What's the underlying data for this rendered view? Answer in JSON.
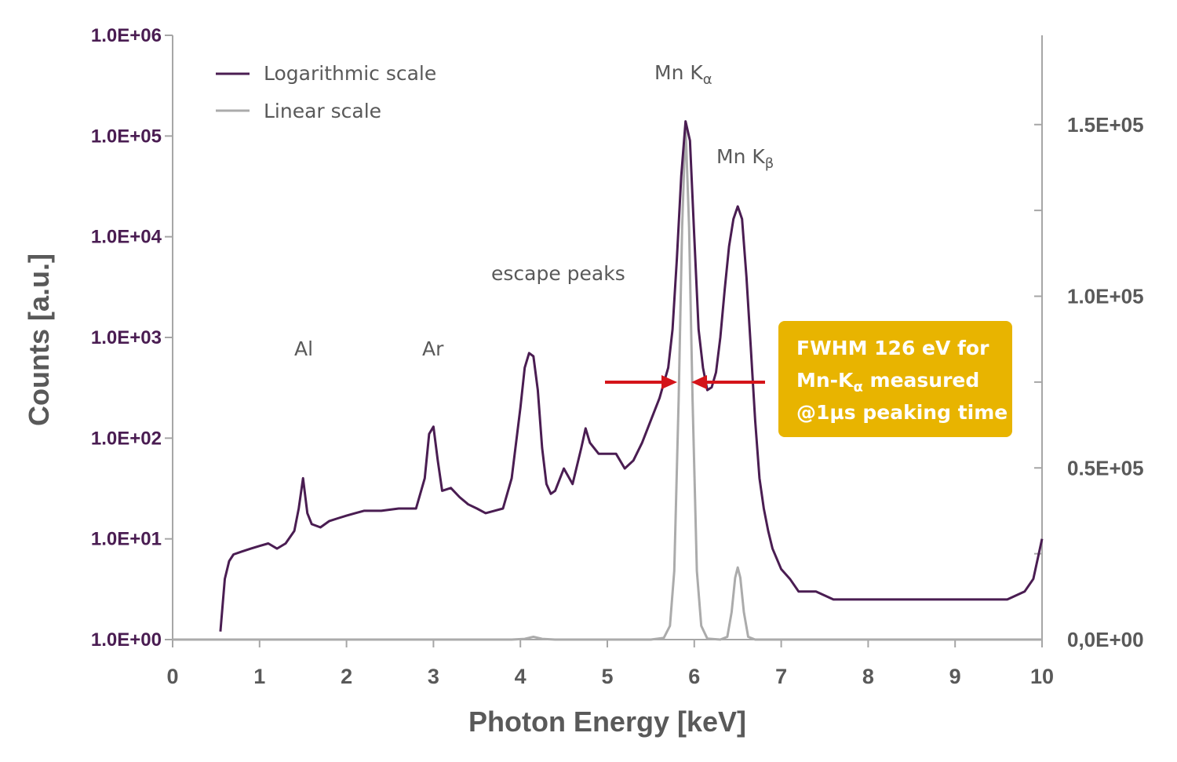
{
  "chart_data": {
    "type": "line",
    "xlabel": "Photon Energy [keV]",
    "ylabel": "Counts [a.u.]",
    "xlim": [
      0,
      10
    ],
    "x_ticks": [
      "0",
      "1",
      "2",
      "3",
      "4",
      "5",
      "6",
      "7",
      "8",
      "9",
      "10"
    ],
    "left_axis": {
      "scale": "log",
      "ylim": [
        1,
        1000000
      ],
      "ticks": [
        1,
        10,
        100,
        1000,
        10000,
        100000,
        1000000
      ],
      "tick_labels": [
        "1.0E+00",
        "1.0E+01",
        "1.0E+02",
        "1.0E+03",
        "1.0E+04",
        "1.0E+05",
        "1.0E+06"
      ],
      "color": "#4a1d52"
    },
    "right_axis": {
      "scale": "linear",
      "ylim": [
        0,
        176000
      ],
      "ticks": [
        0,
        50000,
        100000,
        150000
      ],
      "tick_labels": [
        "0,0E+00",
        "0.5E+05",
        "1.0E+05",
        "1.5E+05"
      ],
      "minor_ticks": [
        25000,
        75000,
        125000
      ],
      "color": "#595959"
    },
    "legend": {
      "position": "top-left",
      "entries": [
        {
          "label": "Logarithmic scale",
          "color": "#4a1d52"
        },
        {
          "label": "Linear scale",
          "color": "#ababab"
        }
      ]
    },
    "series": [
      {
        "name": "Logarithmic scale",
        "axis": "left",
        "color": "#4a1d52",
        "x": [
          0.55,
          0.6,
          0.65,
          0.7,
          0.8,
          0.9,
          1.0,
          1.1,
          1.2,
          1.3,
          1.4,
          1.45,
          1.5,
          1.55,
          1.6,
          1.7,
          1.8,
          1.9,
          2.0,
          2.1,
          2.2,
          2.4,
          2.6,
          2.8,
          2.9,
          2.95,
          3.0,
          3.05,
          3.1,
          3.2,
          3.3,
          3.4,
          3.5,
          3.6,
          3.8,
          3.9,
          4.0,
          4.05,
          4.1,
          4.15,
          4.2,
          4.25,
          4.3,
          4.35,
          4.4,
          4.5,
          4.6,
          4.7,
          4.75,
          4.8,
          4.9,
          5.0,
          5.1,
          5.2,
          5.3,
          5.4,
          5.5,
          5.6,
          5.7,
          5.75,
          5.8,
          5.85,
          5.9,
          5.95,
          6.0,
          6.05,
          6.1,
          6.15,
          6.2,
          6.25,
          6.3,
          6.35,
          6.4,
          6.45,
          6.5,
          6.55,
          6.6,
          6.65,
          6.7,
          6.75,
          6.8,
          6.85,
          6.9,
          7.0,
          7.1,
          7.2,
          7.4,
          7.6,
          7.8,
          8.0,
          8.2,
          8.4,
          8.6,
          8.8,
          9.0,
          9.2,
          9.4,
          9.6,
          9.8,
          9.9,
          10.0
        ],
        "values": [
          1.2,
          4,
          6,
          7,
          7.5,
          8,
          8.5,
          9,
          8,
          9,
          12,
          20,
          40,
          18,
          14,
          13,
          15,
          16,
          17,
          18,
          19,
          19,
          20,
          20,
          40,
          110,
          130,
          60,
          30,
          32,
          26,
          22,
          20,
          18,
          20,
          40,
          200,
          500,
          700,
          650,
          300,
          80,
          35,
          28,
          30,
          50,
          35,
          80,
          125,
          90,
          70,
          70,
          70,
          50,
          60,
          90,
          150,
          250,
          500,
          1200,
          6000,
          40000,
          140000,
          90000,
          10000,
          1200,
          500,
          300,
          320,
          450,
          1000,
          3000,
          8000,
          15000,
          20000,
          15000,
          4000,
          800,
          150,
          40,
          20,
          12,
          8,
          5,
          4,
          3,
          3,
          2.5,
          2.5,
          2.5,
          2.5,
          2.5,
          2.5,
          2.5,
          2.5,
          2.5,
          2.5,
          2.5,
          3,
          4,
          10
        ]
      },
      {
        "name": "Linear scale",
        "axis": "right",
        "color": "#ababab",
        "x": [
          0,
          3.9,
          4.05,
          4.15,
          4.25,
          4.4,
          5.5,
          5.65,
          5.72,
          5.77,
          5.82,
          5.86,
          5.9,
          5.94,
          5.98,
          6.03,
          6.08,
          6.15,
          6.3,
          6.38,
          6.43,
          6.47,
          6.5,
          6.53,
          6.57,
          6.62,
          6.7,
          10
        ],
        "values": [
          0,
          0,
          200,
          800,
          200,
          0,
          0,
          500,
          4000,
          20000,
          70000,
          120000,
          150000,
          120000,
          70000,
          20000,
          4000,
          300,
          0,
          800,
          8000,
          18000,
          21000,
          18000,
          8000,
          800,
          0,
          0
        ]
      }
    ],
    "annotations": [
      {
        "text": "Al",
        "x": 1.5
      },
      {
        "text": "Ar",
        "x": 3.0
      },
      {
        "text": "escape peaks",
        "x": 4.5
      },
      {
        "text": "Mn K",
        "sub": "α",
        "x": 5.8
      },
      {
        "text": "Mn K",
        "sub": "β",
        "x": 6.55
      }
    ],
    "fwhm_box": {
      "line1": "FWHM 126 eV for",
      "line2_pre": "Mn-K",
      "line2_sub": "α",
      "line2_post": " measured",
      "line3": "@1µs peaking time",
      "fill": "#e8b400"
    },
    "fwhm_arrows": {
      "color": "#d4141a",
      "left_x": [
        5.0,
        5.8
      ],
      "right_x": [
        6.85,
        6.0
      ]
    }
  }
}
